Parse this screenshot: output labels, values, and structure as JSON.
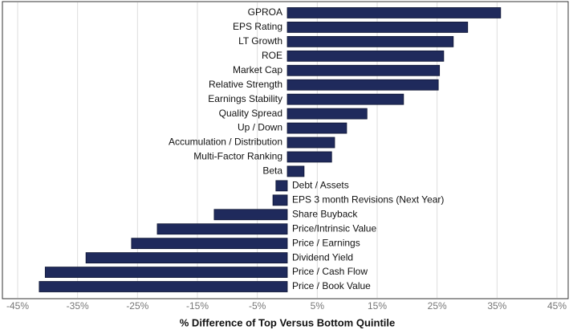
{
  "chart_data": {
    "type": "barh",
    "x_label": "% Difference of Top Versus Bottom Quintile",
    "categories": [
      "GPROA",
      "EPS Rating",
      "LT Growth",
      "ROE",
      "Market Cap",
      "Relative Strength",
      "Earnings Stability",
      "Quality Spread",
      "Up / Down",
      "Accumulation / Distribution",
      "Multi-Factor Ranking",
      "Beta",
      "Debt / Assets",
      "EPS 3 month Revisions (Next Year)",
      "Share Buyback",
      "Price/Intrinsic Value",
      "Price / Earnings",
      "Dividend Yield",
      "Price / Cash Flow",
      "Price / Book Value"
    ],
    "values": [
      35.6,
      30.1,
      27.7,
      26.1,
      25.4,
      25.2,
      19.4,
      13.3,
      9.9,
      7.9,
      7.4,
      2.8,
      -1.9,
      -2.4,
      -12.2,
      -21.7,
      -26.0,
      -33.6,
      -40.4,
      -41.4
    ],
    "color": "#1f2a5c",
    "xlim": [
      -45,
      45
    ],
    "xticks": [
      {
        "value": -45,
        "label": "-45%"
      },
      {
        "value": -35,
        "label": "-35%"
      },
      {
        "value": -25,
        "label": "-25%"
      },
      {
        "value": -15,
        "label": "-15%"
      },
      {
        "value": -5,
        "label": "-5%"
      },
      {
        "value": 5,
        "label": "5%"
      },
      {
        "value": 15,
        "label": "15%"
      },
      {
        "value": 25,
        "label": "25%"
      },
      {
        "value": 35,
        "label": "35%"
      },
      {
        "value": 45,
        "label": "45%"
      }
    ],
    "grid": true
  }
}
